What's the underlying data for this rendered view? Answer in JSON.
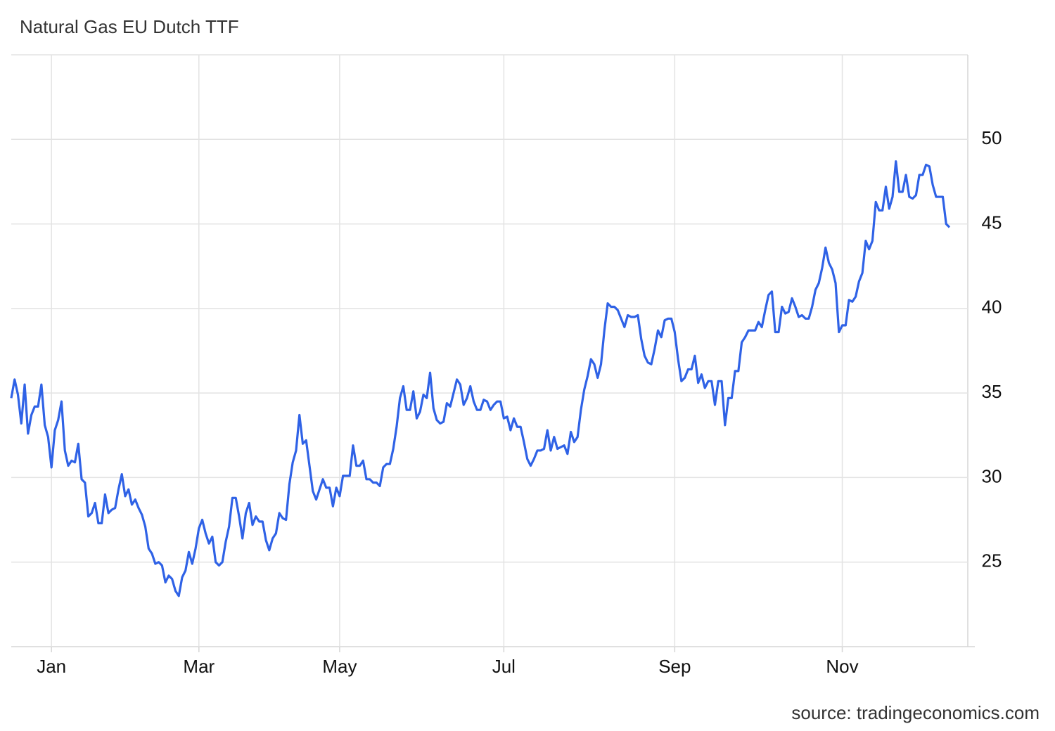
{
  "chart_data": {
    "type": "line",
    "title": "Natural Gas EU Dutch TTF",
    "source": "source: tradingeconomics.com",
    "color": "#2f62e6",
    "grid": true,
    "ylim": [
      20,
      55
    ],
    "yticks": [
      25,
      30,
      35,
      40,
      45,
      50
    ],
    "categories": [
      null,
      null,
      null,
      null,
      null,
      null,
      null,
      null,
      null,
      null,
      null,
      null,
      "Jan",
      null,
      null,
      null,
      null,
      null,
      null,
      null,
      null,
      null,
      null,
      null,
      null,
      null,
      null,
      null,
      null,
      null,
      null,
      null,
      null,
      null,
      null,
      null,
      null,
      null,
      null,
      null,
      null,
      null,
      null,
      null,
      null,
      null,
      null,
      null,
      null,
      null,
      null,
      null,
      null,
      null,
      null,
      null,
      "Mar",
      null,
      null,
      null,
      null,
      null,
      null,
      null,
      null,
      null,
      null,
      null,
      null,
      null,
      null,
      null,
      null,
      null,
      null,
      null,
      null,
      null,
      null,
      null,
      null,
      null,
      null,
      null,
      null,
      null,
      null,
      null,
      null,
      null,
      null,
      null,
      null,
      null,
      null,
      null,
      null,
      null,
      "May",
      null,
      null,
      null,
      null,
      null,
      null,
      null,
      null,
      null,
      null,
      null,
      null,
      null,
      null,
      null,
      null,
      null,
      null,
      null,
      null,
      null,
      null,
      null,
      null,
      null,
      null,
      null,
      null,
      null,
      null,
      null,
      null,
      null,
      null,
      null,
      null,
      null,
      null,
      null,
      null,
      null,
      null,
      null,
      null,
      null,
      null,
      null,
      null,
      "Jul",
      null,
      null,
      null,
      null,
      null,
      null,
      null,
      null,
      null,
      null,
      null,
      null,
      null,
      null,
      null,
      null,
      null,
      null,
      null,
      null,
      null,
      null,
      null,
      null,
      null,
      null,
      null,
      null,
      null,
      null,
      null,
      null,
      null,
      null,
      null,
      null,
      null,
      null,
      null,
      null,
      null,
      null,
      null,
      null,
      null,
      null,
      null,
      null,
      null,
      null,
      "Sep",
      null,
      null,
      null,
      null,
      null,
      null,
      null,
      null,
      null,
      null,
      null,
      null,
      null,
      null,
      null,
      null,
      null,
      null,
      null,
      null,
      null,
      null,
      null,
      null,
      null,
      null,
      null,
      null,
      null,
      null,
      null,
      null,
      null,
      null,
      null,
      null,
      null,
      null,
      null,
      null,
      null,
      null,
      null,
      null,
      null,
      null,
      null,
      null,
      null,
      "Nov",
      null,
      null,
      null,
      null,
      null,
      null,
      null,
      null,
      null,
      null,
      null,
      null,
      null,
      null,
      null,
      null,
      null,
      null,
      null,
      null,
      null,
      null,
      null,
      null,
      null,
      null,
      null,
      null,
      null,
      null,
      null,
      null
    ],
    "values": [
      34.7,
      35.8,
      34.9,
      33.2,
      35.5,
      32.6,
      33.7,
      34.2,
      34.2,
      35.5,
      33.1,
      32.4,
      30.6,
      32.8,
      33.4,
      34.5,
      31.6,
      30.7,
      31.0,
      30.9,
      32.0,
      29.9,
      29.7,
      27.7,
      27.9,
      28.5,
      27.3,
      27.3,
      29.0,
      27.9,
      28.1,
      28.2,
      29.3,
      30.2,
      28.9,
      29.3,
      28.4,
      28.7,
      28.2,
      27.8,
      27.1,
      25.8,
      25.5,
      24.9,
      25.0,
      24.8,
      23.8,
      24.2,
      24.0,
      23.3,
      23.0,
      24.1,
      24.5,
      25.6,
      24.9,
      25.8,
      27.0,
      27.5,
      26.7,
      26.1,
      26.5,
      25.0,
      24.8,
      25.0,
      26.2,
      27.1,
      28.8,
      28.8,
      27.7,
      26.4,
      27.9,
      28.5,
      27.2,
      27.7,
      27.4,
      27.4,
      26.3,
      25.7,
      26.4,
      26.7,
      27.9,
      27.6,
      27.5,
      29.6,
      30.9,
      31.6,
      33.7,
      32.0,
      32.2,
      30.7,
      29.2,
      28.7,
      29.3,
      29.9,
      29.4,
      29.4,
      28.3,
      29.4,
      28.9,
      30.1,
      30.1,
      30.1,
      31.9,
      30.7,
      30.7,
      31.0,
      29.9,
      29.9,
      29.7,
      29.7,
      29.5,
      30.6,
      30.8,
      30.8,
      31.7,
      33.0,
      34.7,
      35.4,
      34.0,
      34.0,
      35.1,
      33.5,
      33.9,
      34.9,
      34.7,
      36.2,
      34.1,
      33.4,
      33.2,
      33.3,
      34.4,
      34.2,
      35.0,
      35.8,
      35.5,
      34.3,
      34.7,
      35.4,
      34.5,
      34.0,
      34.0,
      34.6,
      34.5,
      34.0,
      34.3,
      34.5,
      34.5,
      33.5,
      33.6,
      32.8,
      33.5,
      33.0,
      33.0,
      32.1,
      31.1,
      30.7,
      31.1,
      31.6,
      31.6,
      31.7,
      32.8,
      31.6,
      32.4,
      31.7,
      31.8,
      31.9,
      31.4,
      32.7,
      32.1,
      32.4,
      34.0,
      35.2,
      36.0,
      37.0,
      36.7,
      35.9,
      36.7,
      38.7,
      40.3,
      40.1,
      40.1,
      39.9,
      39.4,
      38.9,
      39.6,
      39.5,
      39.5,
      39.6,
      38.2,
      37.2,
      36.8,
      36.7,
      37.6,
      38.7,
      38.3,
      39.3,
      39.4,
      39.4,
      38.6,
      37.0,
      35.7,
      35.9,
      36.4,
      36.4,
      37.2,
      35.6,
      36.1,
      35.3,
      35.7,
      35.7,
      34.3,
      35.7,
      35.7,
      33.1,
      34.7,
      34.7,
      36.3,
      36.3,
      38.0,
      38.3,
      38.7,
      38.7,
      38.7,
      39.2,
      38.9,
      39.9,
      40.8,
      41.0,
      38.6,
      38.6,
      40.1,
      39.7,
      39.8,
      40.6,
      40.1,
      39.5,
      39.6,
      39.4,
      39.4,
      40.1,
      41.1,
      41.5,
      42.4,
      43.6,
      42.7,
      42.3,
      41.5,
      38.6,
      39.0,
      39.0,
      40.5,
      40.4,
      40.7,
      41.6,
      42.1,
      44.0,
      43.5,
      44.0,
      46.3,
      45.8,
      45.8,
      47.2,
      45.9,
      46.6,
      48.7,
      46.9,
      46.9,
      47.9,
      46.6,
      46.5,
      46.7,
      47.9,
      47.9,
      48.5,
      48.4,
      47.3,
      46.6,
      46.6,
      46.6,
      45.0,
      44.8
    ]
  }
}
